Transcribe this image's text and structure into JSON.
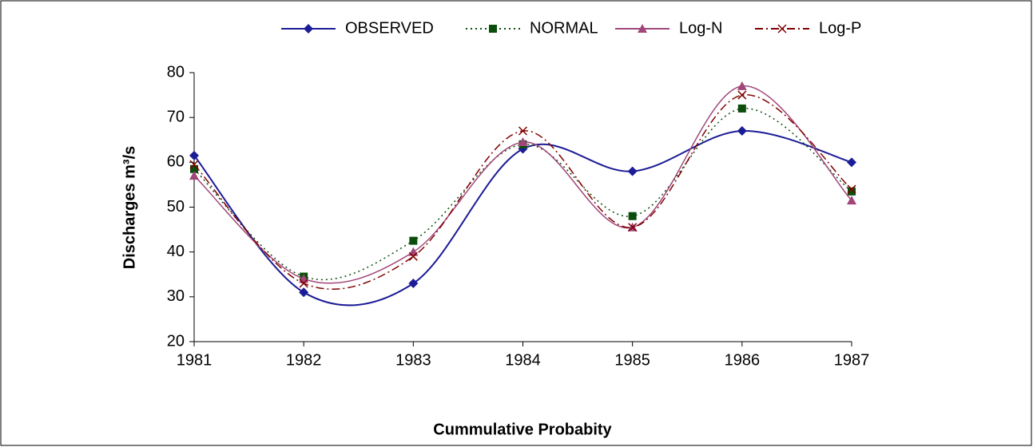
{
  "chart_data": {
    "type": "line",
    "smooth": true,
    "x_label": "Cummulative Probabity",
    "y_label": "Discharges m³/s",
    "categories": [
      "1981",
      "1982",
      "1983",
      "1984",
      "1985",
      "1986",
      "1987"
    ],
    "ylim": [
      20,
      80
    ],
    "yticks": [
      20,
      30,
      40,
      50,
      60,
      70,
      80
    ],
    "legend": "top",
    "series": [
      {
        "name": "OBSERVED",
        "color": "#1c1c96",
        "dash": "solid",
        "marker": "diamond",
        "values": [
          61.5,
          31,
          33,
          63,
          58,
          67,
          60
        ]
      },
      {
        "name": "NORMAL",
        "color": "#0b4d0b",
        "dash": "dotted",
        "marker": "square",
        "values": [
          58.5,
          34.5,
          42.5,
          64,
          48,
          72,
          53.5
        ]
      },
      {
        "name": "Log-N",
        "color": "#a0467a",
        "dash": "solid",
        "marker": "triangle",
        "values": [
          57,
          34,
          40,
          64.5,
          45.5,
          77,
          51.5
        ]
      },
      {
        "name": "Log-P",
        "color": "#800000",
        "dash": "dashdot",
        "marker": "x",
        "values": [
          59.5,
          33,
          39,
          67,
          45.5,
          75,
          54
        ]
      }
    ]
  }
}
